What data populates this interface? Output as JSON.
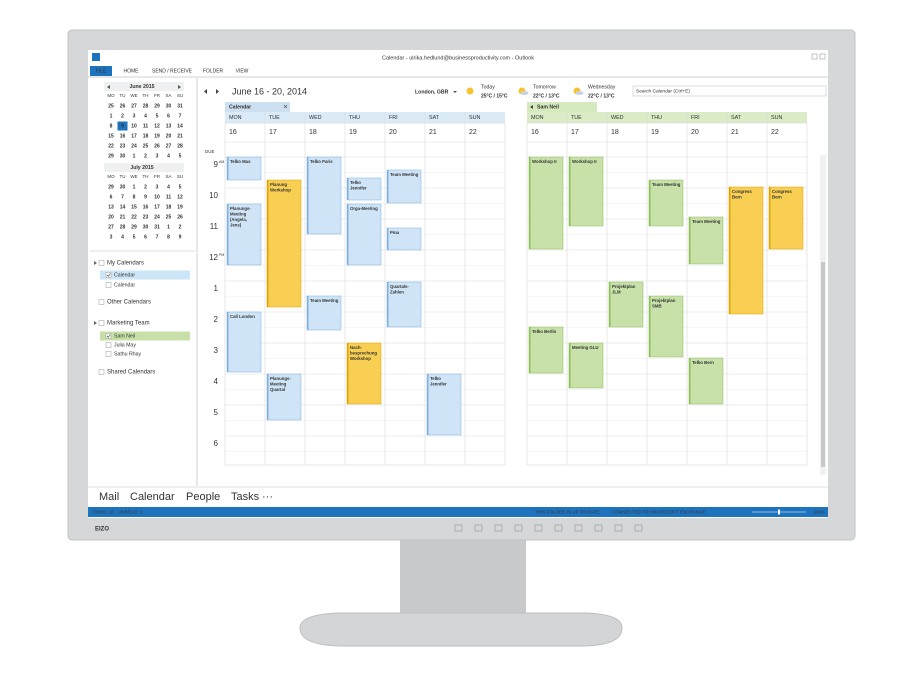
{
  "window": {
    "title": "Calendar - ulrika.hedlund@businessproductivity.com - Outlook",
    "tabs": [
      "FILE",
      "HOME",
      "SEND / RECEIVE",
      "FOLDER",
      "VIEW"
    ],
    "brand": "EIZO"
  },
  "mini_calendars": [
    {
      "month": "June 2015",
      "weekdays": [
        "MO",
        "TU",
        "WE",
        "TH",
        "FR",
        "SA",
        "SU"
      ],
      "weeks": [
        [
          25,
          26,
          27,
          28,
          29,
          30,
          31
        ],
        [
          1,
          2,
          3,
          4,
          5,
          6,
          7
        ],
        [
          8,
          9,
          10,
          11,
          12,
          13,
          14
        ],
        [
          15,
          16,
          17,
          18,
          19,
          20,
          21
        ],
        [
          22,
          23,
          24,
          25,
          26,
          27,
          28
        ],
        [
          29,
          30,
          1,
          2,
          3,
          4,
          5
        ]
      ]
    },
    {
      "month": "July 2015",
      "weekdays": [
        "MO",
        "TU",
        "WE",
        "TH",
        "FR",
        "SA",
        "SU"
      ],
      "weeks": [
        [
          29,
          30,
          1,
          2,
          3,
          4,
          5
        ],
        [
          6,
          7,
          8,
          9,
          10,
          11,
          12
        ],
        [
          13,
          14,
          15,
          16,
          17,
          18,
          19
        ],
        [
          20,
          21,
          22,
          23,
          24,
          25,
          26
        ],
        [
          27,
          28,
          29,
          30,
          31,
          1,
          2
        ],
        [
          3,
          4,
          5,
          6,
          7,
          8,
          9
        ]
      ]
    }
  ],
  "folders": [
    {
      "group": "My Calendars",
      "items": [
        "Calendar",
        "Calendar"
      ]
    },
    {
      "group": "Other Calendars",
      "items": []
    },
    {
      "group": "Marketing Team",
      "items": [
        "Sam Neil",
        "Julia May",
        "Sathu Rhay"
      ]
    },
    {
      "group": "Shared Calendars",
      "items": []
    }
  ],
  "header": {
    "range": "June 16 - 20, 2014",
    "location": "London, GBR",
    "weather": [
      {
        "day": "Today",
        "temp": "25°C / 15°C"
      },
      {
        "day": "Tomorrow",
        "temp": "22°C / 13°C"
      },
      {
        "day": "Wednesday",
        "temp": "22°C / 13°C"
      }
    ],
    "search": "Search Calendar (Ctrl+E)"
  },
  "time_labels": {
    "due": "DUE",
    "hours": [
      9,
      10,
      11,
      12,
      1,
      2,
      3,
      4,
      5,
      6
    ],
    "am": "AM",
    "pm": "PM"
  },
  "calendars": [
    {
      "name": "Calendar",
      "days": [
        "MON",
        "TUE",
        "WED",
        "THU",
        "FRI",
        "SAT",
        "SUN"
      ],
      "dates": [
        16,
        17,
        18,
        19,
        20,
        21,
        22
      ],
      "events": [
        {
          "title": "Telko Max"
        },
        {
          "title": "Planungs-Meeting (Angela, Jens)"
        },
        {
          "title": "Call London"
        },
        {
          "title": "Planung Workshop"
        },
        {
          "title": "Planungs-Meeting Quartal"
        },
        {
          "title": "Telko Paris"
        },
        {
          "title": "Team Meeting"
        },
        {
          "title": "Telko Jennifer"
        },
        {
          "title": "Orga-Meeting"
        },
        {
          "title": "Nach-besprechung Workshop"
        },
        {
          "title": "Team Meeting"
        },
        {
          "title": "Pma"
        },
        {
          "title": "Quartals-Zahlen"
        },
        {
          "title": "Telko Jennifer"
        }
      ]
    },
    {
      "name": "Sam Neil",
      "days": [
        "MON",
        "TUE",
        "WED",
        "THU",
        "FRI",
        "SAT",
        "SUN"
      ],
      "dates": [
        16,
        17,
        18,
        19,
        20,
        21,
        22
      ],
      "events": [
        {
          "title": "Workshop II"
        },
        {
          "title": "Telko Berlin"
        },
        {
          "title": "Workshop II"
        },
        {
          "title": "Meeting GLU"
        },
        {
          "title": "Projektplan JLM"
        },
        {
          "title": "Team Meeting"
        },
        {
          "title": "Projektplan SMB"
        },
        {
          "title": "Team Meeting"
        },
        {
          "title": "Telko Bern"
        },
        {
          "title": "Congress Bern"
        },
        {
          "title": "Congress Bern"
        }
      ]
    }
  ],
  "nav": [
    "Mail",
    "Calendar",
    "People",
    "Tasks",
    "···"
  ],
  "status": {
    "items": "ITEMS: 18",
    "unread": "UNREAD: 2",
    "sync": "THIS FOLDER IS UP TO DATE.",
    "connection": "CONNECTED TO: MICROSOFT EXCHANGE",
    "zoom": "100%"
  }
}
